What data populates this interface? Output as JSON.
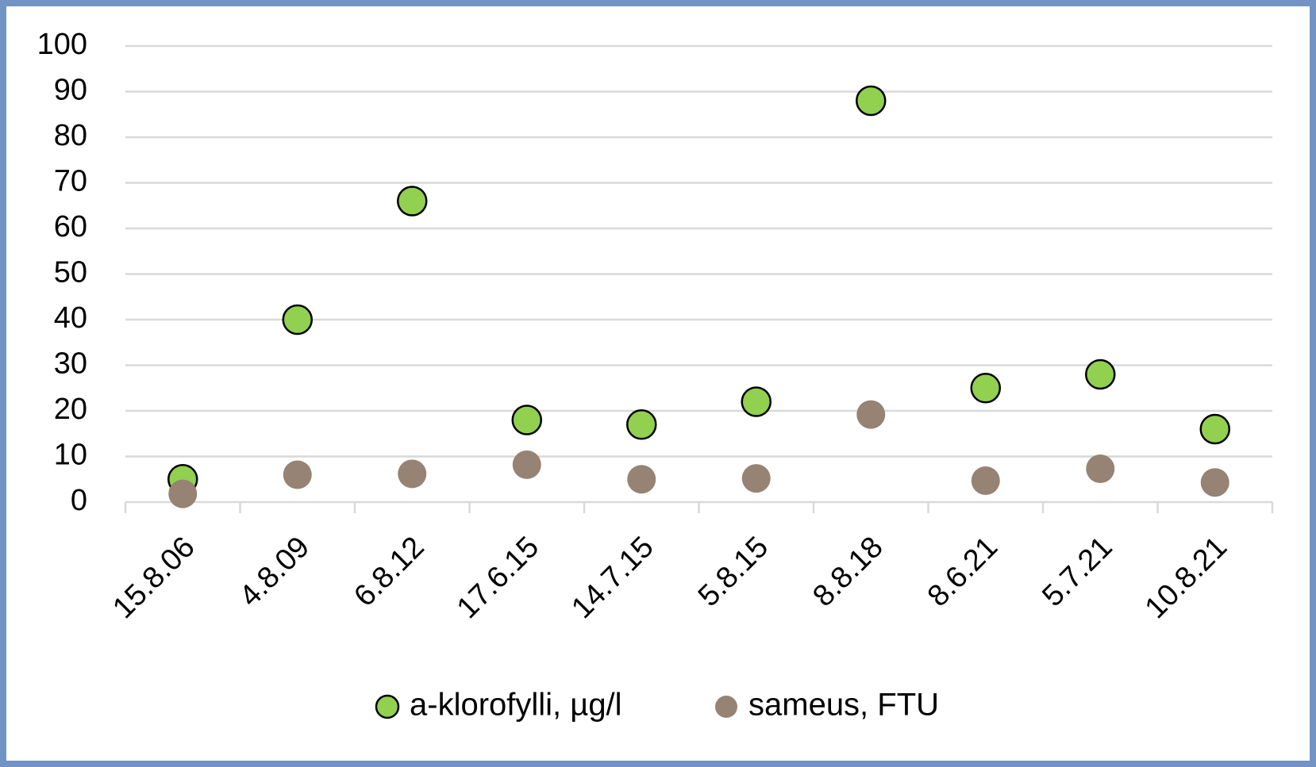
{
  "chart_data": {
    "type": "scatter",
    "categories": [
      "15.8.06",
      "4.8.09",
      "6.8.12",
      "17.6.15",
      "14.7.15",
      "5.8.15",
      "8.8.18",
      "8.6.21",
      "5.7.21",
      "10.8.21"
    ],
    "series": [
      {
        "name": "a-klorofylli, µg/l",
        "color": "#92d050",
        "values": [
          5,
          40,
          66,
          18,
          17,
          22,
          88,
          25,
          28,
          16
        ]
      },
      {
        "name": "sameus, FTU",
        "color": "#968373",
        "values": [
          1.8,
          6,
          6.2,
          8.2,
          5,
          5.2,
          19.2,
          4.7,
          7.3,
          4.3
        ]
      }
    ],
    "ylim": [
      0,
      100
    ],
    "yticks": [
      0,
      10,
      20,
      30,
      40,
      50,
      60,
      70,
      80,
      90,
      100
    ],
    "grid": true
  }
}
